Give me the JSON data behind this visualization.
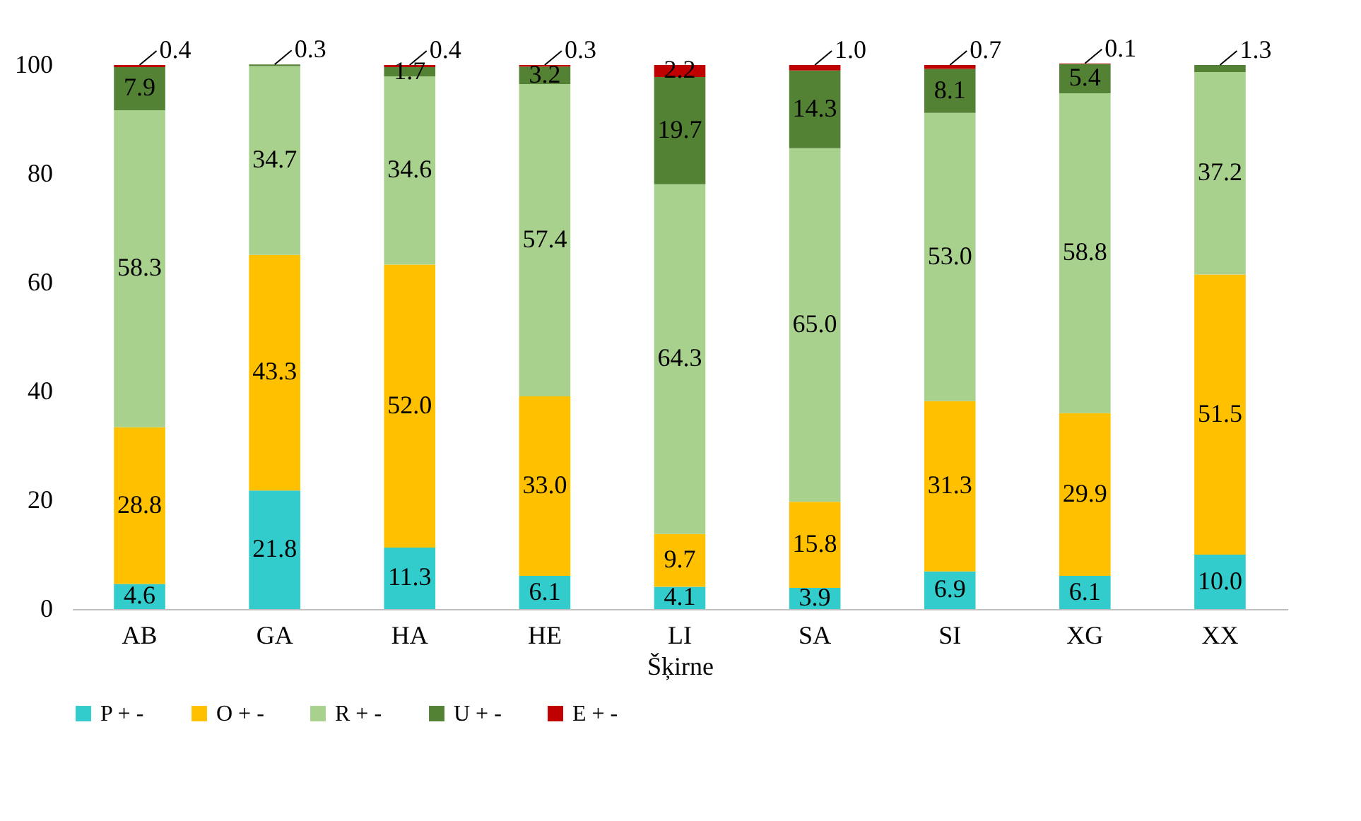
{
  "chart_data": {
    "type": "bar",
    "stacked": true,
    "xlabel": "Šķirne",
    "categories": [
      "AB",
      "GA",
      "HA",
      "HE",
      "LI",
      "SA",
      "SI",
      "XG",
      "XX"
    ],
    "series": [
      {
        "name": "P + -",
        "color": "#33cccc",
        "values": [
          4.6,
          21.8,
          11.3,
          6.1,
          4.1,
          3.9,
          6.9,
          6.1,
          10.0
        ],
        "value_labels": [
          "4.6",
          "21.8",
          "11.3",
          "6.1",
          "4.1",
          "3.9",
          "6.9",
          "6.1",
          "10.0"
        ]
      },
      {
        "name": "O + -",
        "color": "#ffc000",
        "values": [
          28.8,
          43.3,
          52.0,
          33.0,
          9.7,
          15.8,
          31.3,
          29.9,
          51.5
        ],
        "value_labels": [
          "28.8",
          "43.3",
          "52.0",
          "33.0",
          "9.7",
          "15.8",
          "31.3",
          "29.9",
          "51.5"
        ]
      },
      {
        "name": "R + -",
        "color": "#a9d18e",
        "values": [
          58.3,
          34.7,
          34.6,
          57.4,
          64.3,
          65.0,
          53.0,
          58.8,
          37.2
        ],
        "value_labels": [
          "58.3",
          "34.7",
          "34.6",
          "57.4",
          "64.3",
          "65.0",
          "53.0",
          "58.8",
          "37.2"
        ]
      },
      {
        "name": "U + -",
        "color": "#548235",
        "values": [
          7.9,
          0.3,
          1.7,
          3.2,
          19.7,
          14.3,
          8.1,
          5.4,
          1.3
        ],
        "value_labels": [
          "7.9",
          "0.3",
          "1.7",
          "3.2",
          "19.7",
          "14.3",
          "8.1",
          "5.4",
          "1.3"
        ]
      },
      {
        "name": "E + -",
        "color": "#c00000",
        "values": [
          0.4,
          null,
          0.4,
          0.3,
          2.2,
          1.0,
          0.7,
          0.1,
          null
        ],
        "value_labels": [
          "0.4",
          null,
          "0.4",
          "0.3",
          "2.2",
          "1.0",
          "0.7",
          "0.1",
          null
        ]
      }
    ],
    "ylim": [
      0,
      100
    ],
    "yticks": [
      0,
      20,
      40,
      60,
      80,
      100
    ],
    "grid": false,
    "legend": "bottom"
  }
}
